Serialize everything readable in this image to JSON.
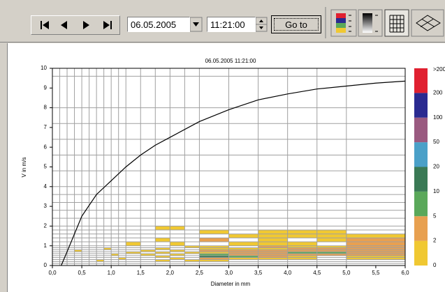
{
  "toolbar": {
    "date": "06.05.2005",
    "time": "11:21:00",
    "go_button": "Go to"
  },
  "chart_data": {
    "type": "heatmap",
    "title": "06.05.2005  11:21:00",
    "x_label": "Diameter in mm",
    "y_label": "V in m/s",
    "xlim": [
      0,
      6
    ],
    "ylim": [
      0,
      10
    ],
    "xticks": [
      {
        "value": 0,
        "label": "0,0"
      },
      {
        "value": 0.5,
        "label": "0,5"
      },
      {
        "value": 1,
        "label": "1,0"
      },
      {
        "value": 1.5,
        "label": "1,5"
      },
      {
        "value": 2,
        "label": "2,0"
      },
      {
        "value": 2.5,
        "label": "2,5"
      },
      {
        "value": 3,
        "label": "3,0"
      },
      {
        "value": 3.5,
        "label": "3,5"
      },
      {
        "value": 4,
        "label": "4,0"
      },
      {
        "value": 4.5,
        "label": "4,5"
      },
      {
        "value": 5,
        "label": "5,0"
      },
      {
        "value": 5.5,
        "label": "5,5"
      },
      {
        "value": 6,
        "label": "6,0"
      }
    ],
    "yticks": [
      0,
      1,
      2,
      3,
      4,
      5,
      6,
      7,
      8,
      9,
      10
    ],
    "xgrid": [
      0.125,
      0.25,
      0.375,
      0.5,
      0.625,
      0.75,
      0.875,
      1,
      1.125,
      1.25,
      1.5,
      1.75,
      2,
      2.25,
      2.5,
      3,
      3.5,
      4,
      4.5,
      5
    ],
    "ygrid": [
      0.1,
      0.2,
      0.3,
      0.4,
      0.5,
      0.6,
      0.7,
      0.8,
      0.9,
      1,
      1.2,
      1.4,
      1.6,
      1.8,
      2,
      2.4,
      2.8,
      3.2,
      3.6,
      4,
      4.8,
      5.6,
      6.4,
      7.2,
      8,
      9.6
    ],
    "color_scale": {
      "bounds": [
        0,
        2,
        5,
        10,
        20,
        50,
        100,
        200
      ],
      "top_label": ">200",
      "colors": [
        "#f0c832",
        "#e8a050",
        "#5aa85a",
        "#3a7a55",
        "#4aa0c8",
        "#9a5a80",
        "#2a2a90",
        "#e02030"
      ]
    },
    "rows": [
      {
        "y": [
          1.8,
          2.0
        ],
        "x": [
          [
            1.75,
            2.0
          ],
          [
            2.0,
            2.25
          ]
        ],
        "values": [
          1,
          1
        ]
      },
      {
        "y": [
          1.6,
          1.8
        ],
        "x": [
          [
            2.5,
            3.0
          ],
          [
            3.5,
            4.0
          ],
          [
            4.0,
            4.5
          ],
          [
            4.5,
            5.0
          ]
        ],
        "values": [
          1,
          1,
          1,
          1
        ]
      },
      {
        "y": [
          1.4,
          1.6
        ],
        "x": [
          [
            3.0,
            3.5
          ],
          [
            3.5,
            4.0
          ],
          [
            4.0,
            4.5
          ],
          [
            4.5,
            5.0
          ],
          [
            5.0,
            6.0
          ]
        ],
        "values": [
          1,
          1,
          1,
          1,
          1
        ]
      },
      {
        "y": [
          1.2,
          1.4
        ],
        "x": [
          [
            1.75,
            2.0
          ],
          [
            2.5,
            3.0
          ],
          [
            3.5,
            4.0
          ],
          [
            4.5,
            5.0
          ],
          [
            5.0,
            6.0
          ]
        ],
        "values": [
          1,
          3,
          1,
          1,
          3
        ]
      },
      {
        "y": [
          1.0,
          1.2
        ],
        "x": [
          [
            1.25,
            1.5
          ],
          [
            2.0,
            2.25
          ],
          [
            3.0,
            3.5
          ],
          [
            3.5,
            4.0
          ],
          [
            4.0,
            4.5
          ],
          [
            5.0,
            6.0
          ]
        ],
        "values": [
          1,
          1,
          1,
          1,
          1,
          3
        ]
      },
      {
        "y": [
          0.9,
          1.0
        ],
        "x": [
          [
            2.25,
            2.5
          ],
          [
            2.5,
            3.0
          ],
          [
            3.5,
            4.0
          ],
          [
            4.0,
            4.5
          ],
          [
            4.5,
            5.0
          ],
          [
            5.0,
            6.0
          ]
        ],
        "values": [
          1,
          1,
          3,
          1,
          1,
          3
        ]
      },
      {
        "y": [
          0.8,
          0.9
        ],
        "x": [
          [
            0.875,
            1.0
          ],
          [
            1.75,
            2.0
          ],
          [
            2.5,
            3.0
          ],
          [
            3.0,
            3.5
          ],
          [
            3.5,
            4.0
          ],
          [
            4.0,
            4.5
          ],
          [
            4.5,
            5.0
          ],
          [
            5.0,
            6.0
          ]
        ],
        "values": [
          1,
          1,
          1,
          1,
          1,
          3,
          3,
          3
        ]
      },
      {
        "y": [
          0.7,
          0.8
        ],
        "x": [
          [
            0.375,
            0.5
          ],
          [
            1.5,
            1.75
          ],
          [
            2.0,
            2.25
          ],
          [
            2.5,
            3.0
          ],
          [
            3.0,
            3.5
          ],
          [
            3.5,
            4.0
          ],
          [
            4.0,
            4.5
          ],
          [
            4.5,
            5.0
          ],
          [
            5.0,
            6.0
          ]
        ],
        "values": [
          1,
          1,
          1,
          3,
          3,
          3,
          3,
          3,
          3
        ]
      },
      {
        "y": [
          0.6,
          0.7
        ],
        "x": [
          [
            1.25,
            1.5
          ],
          [
            1.75,
            2.0
          ],
          [
            2.25,
            2.5
          ],
          [
            2.5,
            3.0
          ],
          [
            3.0,
            3.5
          ],
          [
            3.5,
            4.0
          ],
          [
            4.0,
            4.5
          ],
          [
            4.5,
            5.0
          ],
          [
            5.0,
            6.0
          ]
        ],
        "values": [
          1,
          1,
          1,
          1,
          3,
          3,
          6,
          6,
          3
        ]
      },
      {
        "y": [
          0.5,
          0.6
        ],
        "x": [
          [
            1.0,
            1.125
          ],
          [
            1.5,
            1.75
          ],
          [
            2.0,
            2.25
          ],
          [
            2.5,
            3.0
          ],
          [
            3.0,
            3.5
          ],
          [
            3.5,
            4.0
          ],
          [
            4.0,
            4.5
          ],
          [
            4.5,
            5.0
          ],
          [
            5.0,
            6.0
          ]
        ],
        "values": [
          1,
          1,
          1,
          6,
          3,
          3,
          3,
          3,
          3
        ]
      },
      {
        "y": [
          0.4,
          0.5
        ],
        "x": [
          [
            1.75,
            2.0
          ],
          [
            2.5,
            3.0
          ],
          [
            3.0,
            3.5
          ],
          [
            3.5,
            4.0
          ],
          [
            4.0,
            4.5
          ],
          [
            5.0,
            6.0
          ]
        ],
        "values": [
          1,
          15,
          6,
          3,
          1,
          1
        ]
      },
      {
        "y": [
          0.3,
          0.4
        ],
        "x": [
          [
            1.125,
            1.25
          ],
          [
            2.0,
            2.25
          ],
          [
            2.5,
            3.0
          ],
          [
            3.0,
            3.5
          ],
          [
            3.5,
            4.0
          ],
          [
            4.0,
            4.5
          ],
          [
            5.0,
            6.0
          ]
        ],
        "values": [
          1,
          1,
          3,
          1,
          1,
          1,
          1
        ]
      },
      {
        "y": [
          0.2,
          0.3
        ],
        "x": [
          [
            0.75,
            0.875
          ],
          [
            1.75,
            2.0
          ],
          [
            2.25,
            2.5
          ],
          [
            2.5,
            3.0
          ]
        ],
        "values": [
          1,
          1,
          1,
          1
        ]
      }
    ],
    "curve": {
      "color": "#000000",
      "x": [
        0.15,
        0.25,
        0.5,
        0.75,
        1,
        1.25,
        1.5,
        1.75,
        2,
        2.5,
        3,
        3.5,
        4,
        4.5,
        5,
        5.5,
        6
      ],
      "values": [
        0,
        0.7,
        2.5,
        3.6,
        4.3,
        5.0,
        5.6,
        6.1,
        6.5,
        7.3,
        7.9,
        8.4,
        8.7,
        8.95,
        9.1,
        9.25,
        9.35
      ]
    }
  }
}
